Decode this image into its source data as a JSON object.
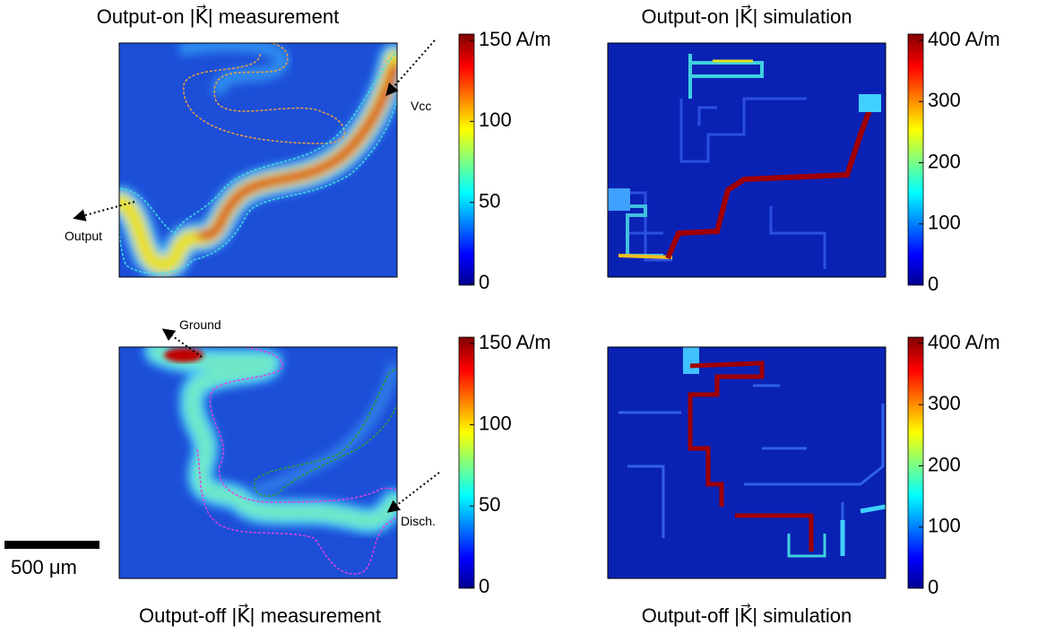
{
  "panels": [
    {
      "title": "Output-on |K⃗| measurement",
      "colorbar": {
        "lim": [
          0,
          150
        ],
        "ticks": [
          0,
          50,
          100,
          {
            "value": 150,
            "label": "150 A/m"
          }
        ]
      },
      "annotations": [
        "Vcc",
        "Output"
      ]
    },
    {
      "title": "Output-on |K⃗| simulation",
      "colorbar": {
        "lim": [
          0,
          400
        ],
        "ticks": [
          0,
          100,
          200,
          300,
          {
            "value": 400,
            "label": "400 A/m"
          }
        ]
      },
      "annotations": []
    },
    {
      "title": "Output-off |K⃗| measurement",
      "colorbar": {
        "lim": [
          0,
          150
        ],
        "ticks": [
          0,
          50,
          100,
          {
            "value": 150,
            "label": "150 A/m"
          }
        ]
      },
      "annotations": [
        "Ground",
        "Disch."
      ]
    },
    {
      "title": "Output-off |K⃗| simulation",
      "colorbar": {
        "lim": [
          0,
          400
        ],
        "ticks": [
          0,
          100,
          200,
          300,
          {
            "value": 400,
            "label": "400 A/m"
          }
        ]
      },
      "annotations": []
    }
  ],
  "scale_bar": "500 μm"
}
